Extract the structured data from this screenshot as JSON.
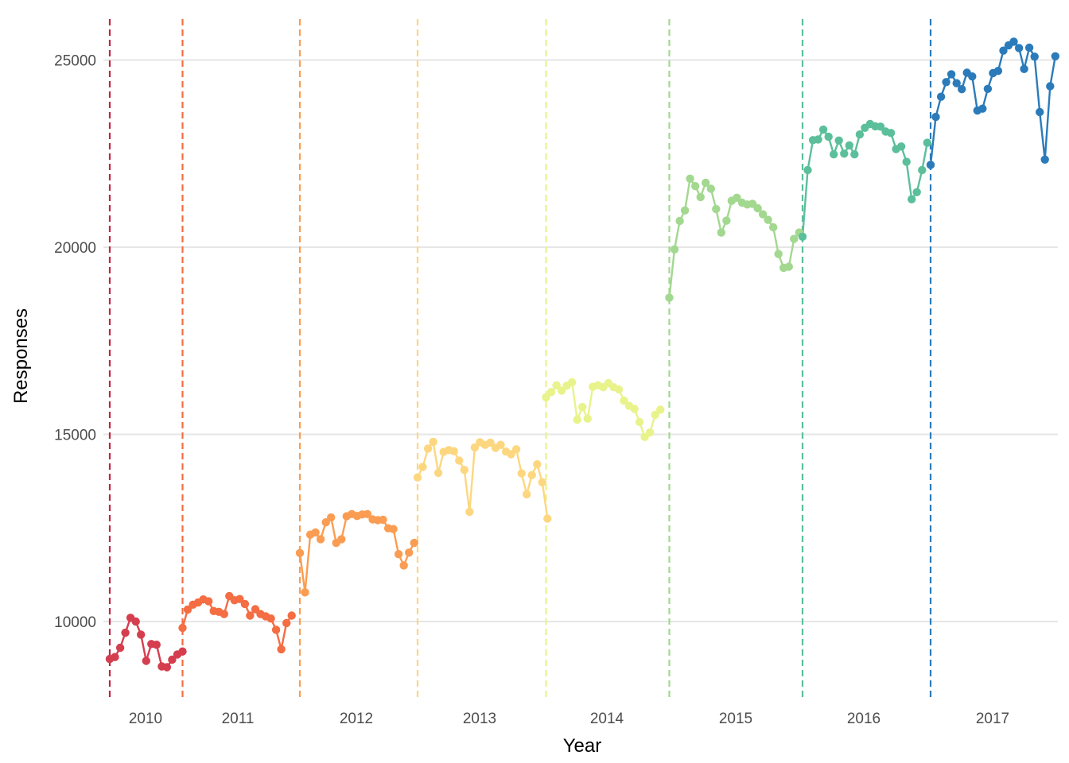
{
  "chart_data": {
    "type": "line",
    "xlabel": "Year",
    "ylabel": "Responses",
    "ylim": [
      8000,
      26000
    ],
    "y_ticks": [
      10000,
      15000,
      20000,
      25000
    ],
    "y_tick_labels": [
      "10000",
      "15000",
      "20000",
      "25000"
    ],
    "grid": "horizontal major lines",
    "markers": "filled circles",
    "x_tick_labels": [
      "2010",
      "2011",
      "2012",
      "2013",
      "2014",
      "2015",
      "2016",
      "2017"
    ],
    "series": [
      {
        "label": "2010",
        "color": "#d53e4f",
        "vline_color": "#c2253f",
        "values": [
          9000,
          9050,
          9300,
          9700,
          10100,
          10000,
          9650,
          8950,
          9400,
          9380,
          8800,
          8780,
          8980,
          9120,
          9200
        ]
      },
      {
        "label": "2011",
        "color": "#f46d43",
        "values": [
          9830,
          10320,
          10450,
          10510,
          10590,
          10540,
          10280,
          10260,
          10200,
          10680,
          10570,
          10600,
          10470,
          10160,
          10330,
          10200,
          10140,
          10080,
          9780,
          9260,
          9960,
          10160
        ]
      },
      {
        "label": "2012",
        "color": "#fa9d52",
        "values": [
          11830,
          10780,
          12320,
          12380,
          12200,
          12650,
          12780,
          12100,
          12200,
          12810,
          12870,
          12820,
          12860,
          12870,
          12730,
          12710,
          12720,
          12490,
          12470,
          11800,
          11500,
          11840,
          12100
        ]
      },
      {
        "label": "2013",
        "color": "#fdd77f",
        "values": [
          13850,
          14130,
          14620,
          14800,
          13970,
          14530,
          14580,
          14550,
          14300,
          14050,
          12930,
          14650,
          14790,
          14720,
          14780,
          14640,
          14720,
          14540,
          14470,
          14600,
          13960,
          13400,
          13910,
          14200,
          13720,
          12750
        ]
      },
      {
        "label": "2014",
        "color": "#e8f38b",
        "values": [
          15990,
          16130,
          16310,
          16170,
          16300,
          16390,
          15390,
          15730,
          15420,
          16270,
          16310,
          16260,
          16370,
          16260,
          16200,
          15900,
          15760,
          15680,
          15330,
          14930,
          15050,
          15520,
          15660
        ]
      },
      {
        "label": "2015",
        "color": "#a2d88f",
        "values": [
          18650,
          19940,
          20700,
          20980,
          21830,
          21630,
          21340,
          21720,
          21560,
          21020,
          20390,
          20710,
          21240,
          21320,
          21190,
          21140,
          21160,
          21040,
          20880,
          20730,
          20530,
          19820,
          19450,
          19480,
          20220,
          20390
        ]
      },
      {
        "label": "2016",
        "color": "#5cbf9b",
        "values": [
          20280,
          22060,
          22860,
          22880,
          23140,
          22950,
          22480,
          22850,
          22500,
          22720,
          22480,
          23010,
          23190,
          23290,
          23230,
          23220,
          23090,
          23050,
          22620,
          22690,
          22280,
          21280,
          21470,
          22060,
          22790
        ]
      },
      {
        "label": "2017",
        "color": "#2b7bba",
        "values": [
          22200,
          23480,
          24020,
          24410,
          24620,
          24380,
          24220,
          24660,
          24560,
          23650,
          23700,
          24230,
          24650,
          24710,
          25250,
          25390,
          25490,
          25320,
          24760,
          25330,
          25090,
          23610,
          22340,
          24300,
          25100
        ]
      }
    ]
  }
}
